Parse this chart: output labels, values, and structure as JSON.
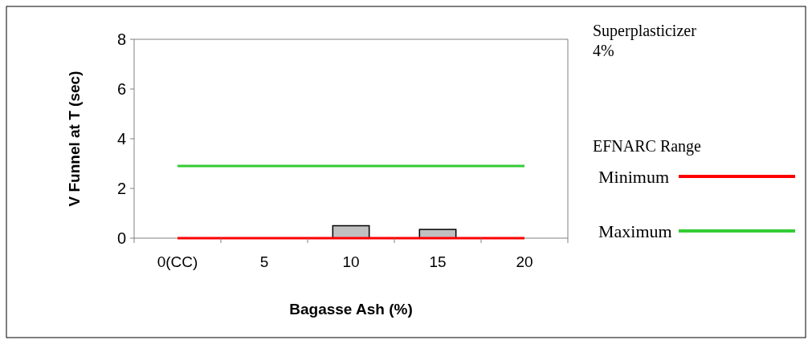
{
  "chart_data": {
    "type": "bar",
    "xlabel": "Bagasse Ash (%)",
    "ylabel": "V Funnel at T (sec)",
    "categories": [
      "0(CC)",
      "5",
      "10",
      "15",
      "20"
    ],
    "series": [
      {
        "color": "#c0c0c0",
        "values": [
          null,
          null,
          0.5,
          0.35,
          null
        ]
      },
      {
        "type": "line",
        "name": "Minimum",
        "color": "#ff0000",
        "values": [
          0,
          0,
          0,
          0,
          0
        ]
      },
      {
        "type": "line",
        "name": "Maximum",
        "color": "#33cc33",
        "values": [
          2.9,
          2.9,
          2.9,
          2.9,
          2.9
        ]
      }
    ],
    "ylim": [
      0,
      8
    ],
    "yticks": [
      0,
      2,
      4,
      6,
      8
    ],
    "legend": "right",
    "legend_title": "EFNARC Range",
    "marker": "none",
    "annotations": [
      "Superplasticizer\n4%"
    ]
  }
}
